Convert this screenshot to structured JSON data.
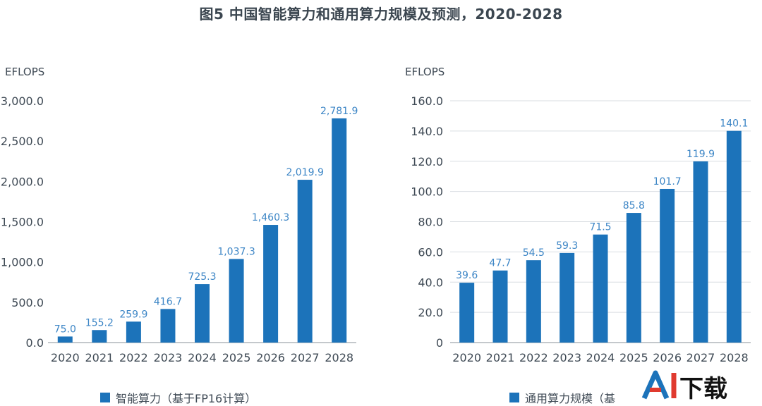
{
  "page": {
    "title": "图5 中国智能算力和通用算力规模及预测，2020-2028"
  },
  "colors": {
    "bar": "#1c73ba",
    "label": "#3d86c6",
    "axis": "#8a9099",
    "grid": "#d9dde2",
    "text": "#3f4a55"
  },
  "chart_data": [
    {
      "type": "bar",
      "ylabel": "EFLOPS",
      "categories": [
        "2020",
        "2021",
        "2022",
        "2023",
        "2024",
        "2025",
        "2026",
        "2027",
        "2028"
      ],
      "series": [
        {
          "name": "智能算力（基于FP16计算）",
          "values": [
            75.0,
            155.2,
            259.9,
            416.7,
            725.3,
            1037.3,
            1460.3,
            2019.9,
            2781.9
          ]
        }
      ],
      "data_labels": [
        "75.0",
        "155.2",
        "259.9",
        "416.7",
        "725.3",
        "1,037.3",
        "1,460.3",
        "2,019.9",
        "2,781.9"
      ],
      "ylim": [
        0,
        3000
      ],
      "yticks": [
        "0.0",
        "500.0",
        "1,000.0",
        "1,500.0",
        "2,000.0",
        "2,500.0",
        "3,000.0"
      ],
      "legend_position": "bottom",
      "grid": false
    },
    {
      "type": "bar",
      "ylabel": "EFLOPS",
      "categories": [
        "2020",
        "2021",
        "2022",
        "2023",
        "2024",
        "2025",
        "2026",
        "2027",
        "2028"
      ],
      "series": [
        {
          "name": "通用算力规模（基",
          "values": [
            39.6,
            47.7,
            54.5,
            59.3,
            71.5,
            85.8,
            101.7,
            119.9,
            140.1
          ]
        }
      ],
      "data_labels": [
        "39.6",
        "47.7",
        "54.5",
        "59.3",
        "71.5",
        "85.8",
        "101.7",
        "119.9",
        "140.1"
      ],
      "ylim": [
        0,
        160
      ],
      "yticks": [
        "0",
        "20.0",
        "40.0",
        "60.0",
        "80.0",
        "100.0",
        "120.0",
        "140.0",
        "160.0"
      ],
      "legend_position": "bottom",
      "grid": true
    }
  ],
  "watermark": {
    "text": "AI下载"
  }
}
